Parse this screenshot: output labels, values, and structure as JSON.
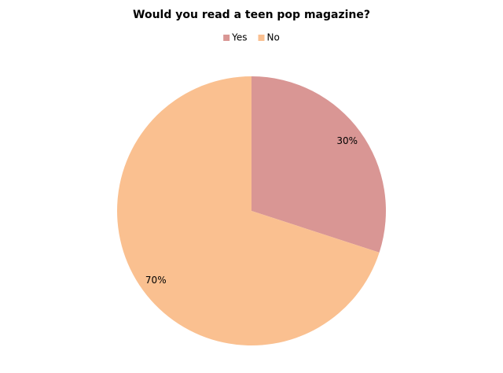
{
  "chart_data": {
    "type": "pie",
    "title": "Would you read a teen pop magazine?",
    "categories": [
      "Yes",
      "No"
    ],
    "values": [
      30,
      70
    ],
    "value_labels": [
      "30%",
      "70%"
    ],
    "colors": [
      "#d99694",
      "#fac090"
    ],
    "legend": "top"
  }
}
